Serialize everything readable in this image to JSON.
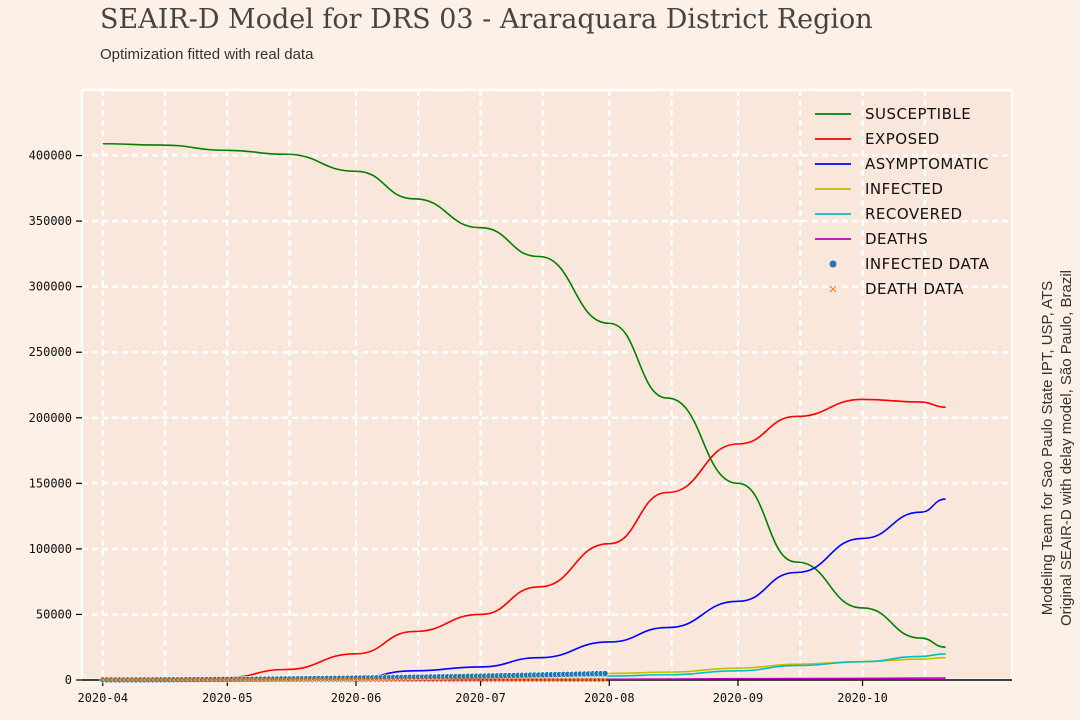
{
  "title": "SEAIR-D Model for DRS 03 - Araraquara District Region",
  "subtitle": "Optimization fitted with real data",
  "side_note": {
    "line1": "Modeling Team for Sao Paulo State IPT, USP, ATS",
    "line2": "Original SEAIR-D with delay model, São Paulo, Brazil"
  },
  "chart_data": {
    "type": "line",
    "x_axis_type": "date",
    "xlim": [
      "2020-03-27",
      "2020-11-06"
    ],
    "ylim": [
      0,
      450000
    ],
    "y_ticks": [
      0,
      50000,
      100000,
      150000,
      200000,
      250000,
      300000,
      350000,
      400000
    ],
    "x_ticks": [
      "2020-04-01",
      "2020-05-01",
      "2020-06-01",
      "2020-07-01",
      "2020-08-01",
      "2020-09-01",
      "2020-10-01"
    ],
    "x_tick_labels": [
      "2020-04",
      "2020-05",
      "2020-06",
      "2020-07",
      "2020-08",
      "2020-09",
      "2020-10"
    ],
    "grid": true,
    "legend_position": "top-right",
    "series": [
      {
        "name": "Susceptible",
        "color": "#008000",
        "kind": "line",
        "points": [
          [
            "2020-04-01",
            409000
          ],
          [
            "2020-04-15",
            408000
          ],
          [
            "2020-05-01",
            404000
          ],
          [
            "2020-05-15",
            401000
          ],
          [
            "2020-06-01",
            388000
          ],
          [
            "2020-06-15",
            367000
          ],
          [
            "2020-07-01",
            345000
          ],
          [
            "2020-07-15",
            323000
          ],
          [
            "2020-08-01",
            272000
          ],
          [
            "2020-08-15",
            215000
          ],
          [
            "2020-09-01",
            150000
          ],
          [
            "2020-09-15",
            90000
          ],
          [
            "2020-10-01",
            55000
          ],
          [
            "2020-10-15",
            32000
          ],
          [
            "2020-10-21",
            25000
          ]
        ]
      },
      {
        "name": "Exposed",
        "color": "#ff0000",
        "kind": "line",
        "points": [
          [
            "2020-04-01",
            0
          ],
          [
            "2020-04-15",
            500
          ],
          [
            "2020-05-01",
            2000
          ],
          [
            "2020-05-15",
            8000
          ],
          [
            "2020-06-01",
            20000
          ],
          [
            "2020-06-15",
            37000
          ],
          [
            "2020-07-01",
            50000
          ],
          [
            "2020-07-15",
            71000
          ],
          [
            "2020-08-01",
            104000
          ],
          [
            "2020-08-15",
            143000
          ],
          [
            "2020-09-01",
            180000
          ],
          [
            "2020-09-15",
            201000
          ],
          [
            "2020-10-01",
            214000
          ],
          [
            "2020-10-15",
            212000
          ],
          [
            "2020-10-21",
            208000
          ]
        ]
      },
      {
        "name": "Asymptomatic",
        "color": "#0000ff",
        "kind": "line",
        "points": [
          [
            "2020-04-01",
            0
          ],
          [
            "2020-05-01",
            300
          ],
          [
            "2020-06-01",
            2000
          ],
          [
            "2020-06-15",
            7000
          ],
          [
            "2020-07-01",
            10000
          ],
          [
            "2020-07-15",
            17000
          ],
          [
            "2020-08-01",
            29000
          ],
          [
            "2020-08-15",
            40000
          ],
          [
            "2020-09-01",
            60000
          ],
          [
            "2020-09-15",
            82000
          ],
          [
            "2020-10-01",
            108000
          ],
          [
            "2020-10-15",
            128000
          ],
          [
            "2020-10-21",
            138000
          ]
        ]
      },
      {
        "name": "Infected",
        "color": "#bfbf00",
        "kind": "line",
        "points": [
          [
            "2020-04-01",
            0
          ],
          [
            "2020-06-01",
            500
          ],
          [
            "2020-07-01",
            3000
          ],
          [
            "2020-08-01",
            5000
          ],
          [
            "2020-08-15",
            6000
          ],
          [
            "2020-09-01",
            9000
          ],
          [
            "2020-09-15",
            12000
          ],
          [
            "2020-10-01",
            14000
          ],
          [
            "2020-10-15",
            16000
          ],
          [
            "2020-10-21",
            17000
          ]
        ]
      },
      {
        "name": "Recovered",
        "color": "#00bfbf",
        "kind": "line",
        "points": [
          [
            "2020-04-01",
            0
          ],
          [
            "2020-06-01",
            300
          ],
          [
            "2020-07-01",
            1500
          ],
          [
            "2020-08-01",
            3000
          ],
          [
            "2020-08-15",
            4000
          ],
          [
            "2020-09-01",
            7000
          ],
          [
            "2020-09-15",
            11000
          ],
          [
            "2020-10-01",
            14000
          ],
          [
            "2020-10-15",
            18000
          ],
          [
            "2020-10-21",
            20000
          ]
        ]
      },
      {
        "name": "Deaths",
        "color": "#bf00bf",
        "kind": "line",
        "points": [
          [
            "2020-04-01",
            0
          ],
          [
            "2020-07-01",
            200
          ],
          [
            "2020-08-01",
            500
          ],
          [
            "2020-09-01",
            1000
          ],
          [
            "2020-10-01",
            1200
          ],
          [
            "2020-10-21",
            1500
          ]
        ]
      },
      {
        "name": "Infected data",
        "color": "#1f77b4",
        "kind": "dots",
        "start": "2020-04-01",
        "end": "2020-07-31",
        "y_start": 100,
        "y_end": 5000
      },
      {
        "name": "Death data",
        "color": "#ff7f0e",
        "kind": "cross",
        "start": "2020-04-01",
        "end": "2020-07-31",
        "y_start": 0,
        "y_end": 100
      }
    ],
    "legend": [
      "Susceptible",
      "Exposed",
      "Asymptomatic",
      "Infected",
      "Recovered",
      "Deaths",
      "Infected data",
      "Death data"
    ]
  }
}
